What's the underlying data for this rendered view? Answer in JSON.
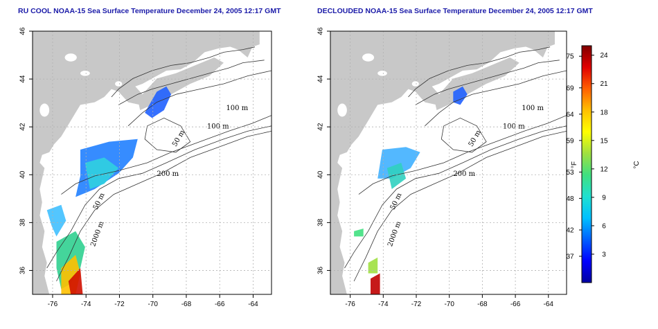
{
  "panels": [
    {
      "title": "RU COOL NOAA-15 Sea Surface Temperature December 24, 2005 12:17 GMT",
      "contour_labels": [
        "100 m",
        "100 m",
        "50 m",
        "200 m",
        "50 m",
        "2000 m"
      ]
    },
    {
      "title": "DECLOUDED NOAA-15 Sea Surface Temperature December 24, 2005 12:17 GMT",
      "contour_labels": [
        "100 m",
        "100 m",
        "50 m",
        "200 m",
        "50 m",
        "2000 m"
      ]
    }
  ],
  "axes": {
    "x_ticks": [
      "-76",
      "-74",
      "-72",
      "-70",
      "-68",
      "-66",
      "-64"
    ],
    "y_ticks": [
      "36",
      "38",
      "40",
      "42",
      "44",
      "46"
    ],
    "lon_range": [
      -77.2,
      -62.9
    ],
    "lat_range": [
      35,
      46
    ]
  },
  "colorbar": {
    "fahrenheit_label": "°F",
    "celsius_label": "°C",
    "fahrenheit_ticks": [
      "75",
      "69",
      "64",
      "59",
      "53",
      "48",
      "42",
      "37"
    ],
    "celsius_ticks": [
      "24",
      "21",
      "18",
      "15",
      "12",
      "9",
      "6",
      "3"
    ],
    "celsius_range": [
      0,
      25
    ],
    "colors": [
      "#0000a0",
      "#0000ff",
      "#0060ff",
      "#00c0ff",
      "#20e0d0",
      "#40e080",
      "#a0e040",
      "#ffff00",
      "#ffc000",
      "#ff6000",
      "#e00000",
      "#800000"
    ]
  },
  "colors": {
    "land": "#c8c8c8",
    "ocean": "#ffffff",
    "contour": "#333333",
    "grid": "#b0b0b0",
    "title": "#1a1aa8"
  }
}
